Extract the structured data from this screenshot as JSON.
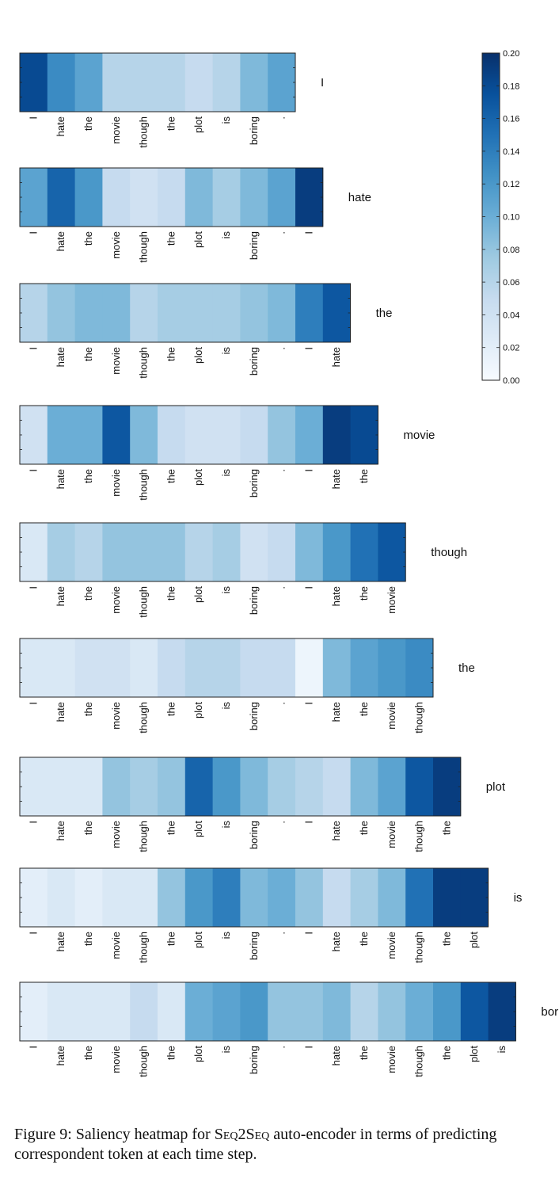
{
  "chart_data": {
    "type": "heatmap",
    "title": "Saliency heatmap for Seq2Seq auto-encoder",
    "source_tokens": [
      "I",
      "hate",
      "the",
      "movie",
      "though",
      "the",
      "plot",
      "is",
      "boring",
      "."
    ],
    "colorbar": {
      "min": 0.0,
      "max": 0.2,
      "ticks": [
        "0.00",
        "0.02",
        "0.04",
        "0.06",
        "0.08",
        "0.10",
        "0.12",
        "0.14",
        "0.16",
        "0.18",
        "0.20"
      ]
    },
    "rows": [
      {
        "target": "I",
        "tokens": [
          "I",
          "hate",
          "the",
          "movie",
          "though",
          "the",
          "plot",
          "is",
          "boring",
          "."
        ],
        "values": [
          0.18,
          0.13,
          0.11,
          0.06,
          0.06,
          0.06,
          0.05,
          0.06,
          0.09,
          0.11
        ]
      },
      {
        "target": "hate",
        "tokens": [
          "I",
          "hate",
          "the",
          "movie",
          "though",
          "the",
          "plot",
          "is",
          "boring",
          ".",
          "I"
        ],
        "values": [
          0.11,
          0.16,
          0.12,
          0.05,
          0.04,
          0.05,
          0.09,
          0.07,
          0.09,
          0.11,
          0.19
        ]
      },
      {
        "target": "the",
        "tokens": [
          "I",
          "hate",
          "the",
          "movie",
          "though",
          "the",
          "plot",
          "is",
          "boring",
          ".",
          "I",
          "hate"
        ],
        "values": [
          0.06,
          0.08,
          0.09,
          0.09,
          0.06,
          0.07,
          0.07,
          0.07,
          0.08,
          0.09,
          0.14,
          0.17
        ]
      },
      {
        "target": "movie",
        "tokens": [
          "I",
          "hate",
          "the",
          "movie",
          "though",
          "the",
          "plot",
          "is",
          "boring",
          ".",
          "I",
          "hate",
          "the"
        ],
        "values": [
          0.04,
          0.1,
          0.1,
          0.17,
          0.09,
          0.05,
          0.04,
          0.04,
          0.05,
          0.08,
          0.1,
          0.19,
          0.18
        ]
      },
      {
        "target": "though",
        "tokens": [
          "I",
          "hate",
          "the",
          "movie",
          "though",
          "the",
          "plot",
          "is",
          "boring",
          ".",
          "I",
          "hate",
          "the",
          "movie"
        ],
        "values": [
          0.03,
          0.07,
          0.06,
          0.08,
          0.08,
          0.08,
          0.06,
          0.07,
          0.04,
          0.05,
          0.09,
          0.12,
          0.15,
          0.17
        ]
      },
      {
        "target": "the",
        "tokens": [
          "I",
          "hate",
          "the",
          "movie",
          "though",
          "the",
          "plot",
          "is",
          "boring",
          ".",
          "I",
          "hate",
          "the",
          "movie",
          "though"
        ],
        "values": [
          0.03,
          0.03,
          0.04,
          0.04,
          0.03,
          0.05,
          0.06,
          0.06,
          0.05,
          0.05,
          0.01,
          0.09,
          0.11,
          0.12,
          0.13
        ]
      },
      {
        "target": "plot",
        "tokens": [
          "I",
          "hate",
          "the",
          "movie",
          "though",
          "the",
          "plot",
          "is",
          "boring",
          ".",
          "I",
          "hate",
          "the",
          "movie",
          "though",
          "the"
        ],
        "values": [
          0.03,
          0.03,
          0.03,
          0.08,
          0.07,
          0.08,
          0.16,
          0.12,
          0.09,
          0.07,
          0.06,
          0.05,
          0.09,
          0.11,
          0.17,
          0.19
        ]
      },
      {
        "target": "is",
        "tokens": [
          "I",
          "hate",
          "the",
          "movie",
          "though",
          "the",
          "plot",
          "is",
          "boring",
          ".",
          "I",
          "hate",
          "the",
          "movie",
          "though",
          "the",
          "plot"
        ],
        "values": [
          0.02,
          0.03,
          0.02,
          0.03,
          0.03,
          0.08,
          0.12,
          0.14,
          0.09,
          0.1,
          0.08,
          0.05,
          0.07,
          0.09,
          0.15,
          0.19,
          0.19
        ]
      },
      {
        "target": "boring",
        "tokens": [
          "I",
          "hate",
          "the",
          "movie",
          "though",
          "the",
          "plot",
          "is",
          "boring",
          ".",
          "I",
          "hate",
          "the",
          "movie",
          "though",
          "the",
          "plot",
          "is"
        ],
        "values": [
          0.02,
          0.03,
          0.03,
          0.03,
          0.05,
          0.03,
          0.1,
          0.11,
          0.12,
          0.08,
          0.08,
          0.09,
          0.06,
          0.08,
          0.1,
          0.12,
          0.17,
          0.19
        ]
      }
    ]
  },
  "caption": {
    "prefix": "Figure 9:  Saliency heatmap for ",
    "model": "Seq2Seq",
    "suffix": " auto-encoder in terms of predicting correspondent token at each time step."
  }
}
